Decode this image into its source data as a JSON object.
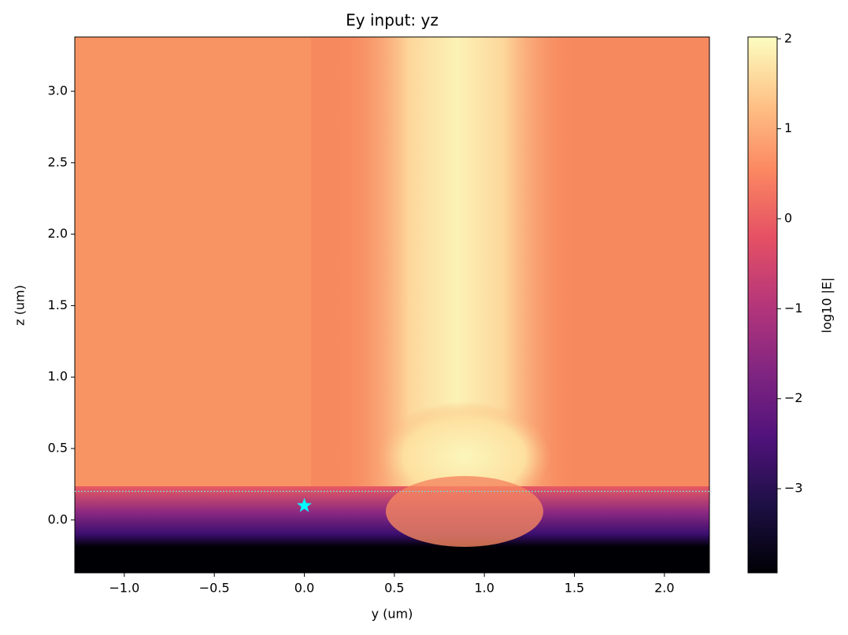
{
  "chart_data": {
    "type": "heatmap",
    "title": "Ey input: yz",
    "xlabel": "y (um)",
    "ylabel": "z (um)",
    "xlim": [
      -1.275,
      2.25
    ],
    "ylim": [
      -0.37,
      3.38
    ],
    "xticks": [
      {
        "value": -1.0,
        "label": "−1.0"
      },
      {
        "value": -0.5,
        "label": "−0.5"
      },
      {
        "value": 0,
        "label": "0.0"
      },
      {
        "value": 0.5,
        "label": "0.5"
      },
      {
        "value": 1,
        "label": "1.0"
      },
      {
        "value": 1.5,
        "label": "1.5"
      },
      {
        "value": 2,
        "label": "2.0"
      }
    ],
    "yticks": [
      {
        "value": 0,
        "label": "0.0"
      },
      {
        "value": 0.5,
        "label": "0.5"
      },
      {
        "value": 1,
        "label": "1.0"
      },
      {
        "value": 1.5,
        "label": "1.5"
      },
      {
        "value": 2,
        "label": "2.0"
      },
      {
        "value": 2.5,
        "label": "2.5"
      },
      {
        "value": 3,
        "label": "3.0"
      }
    ],
    "colormap": "magma",
    "colorbar_label": "log10 |E|",
    "clim": [
      -3.935,
      2.02
    ],
    "cticks": [
      {
        "value": -3,
        "label": "−3"
      },
      {
        "value": -2,
        "label": "−2"
      },
      {
        "value": -1,
        "label": "−1"
      },
      0,
      1,
      2
    ],
    "marker": {
      "x": 0,
      "y": 0.1,
      "color": "#00ffff"
    },
    "hline": {
      "y": 0.2,
      "color": "#7fd8d8"
    }
  }
}
